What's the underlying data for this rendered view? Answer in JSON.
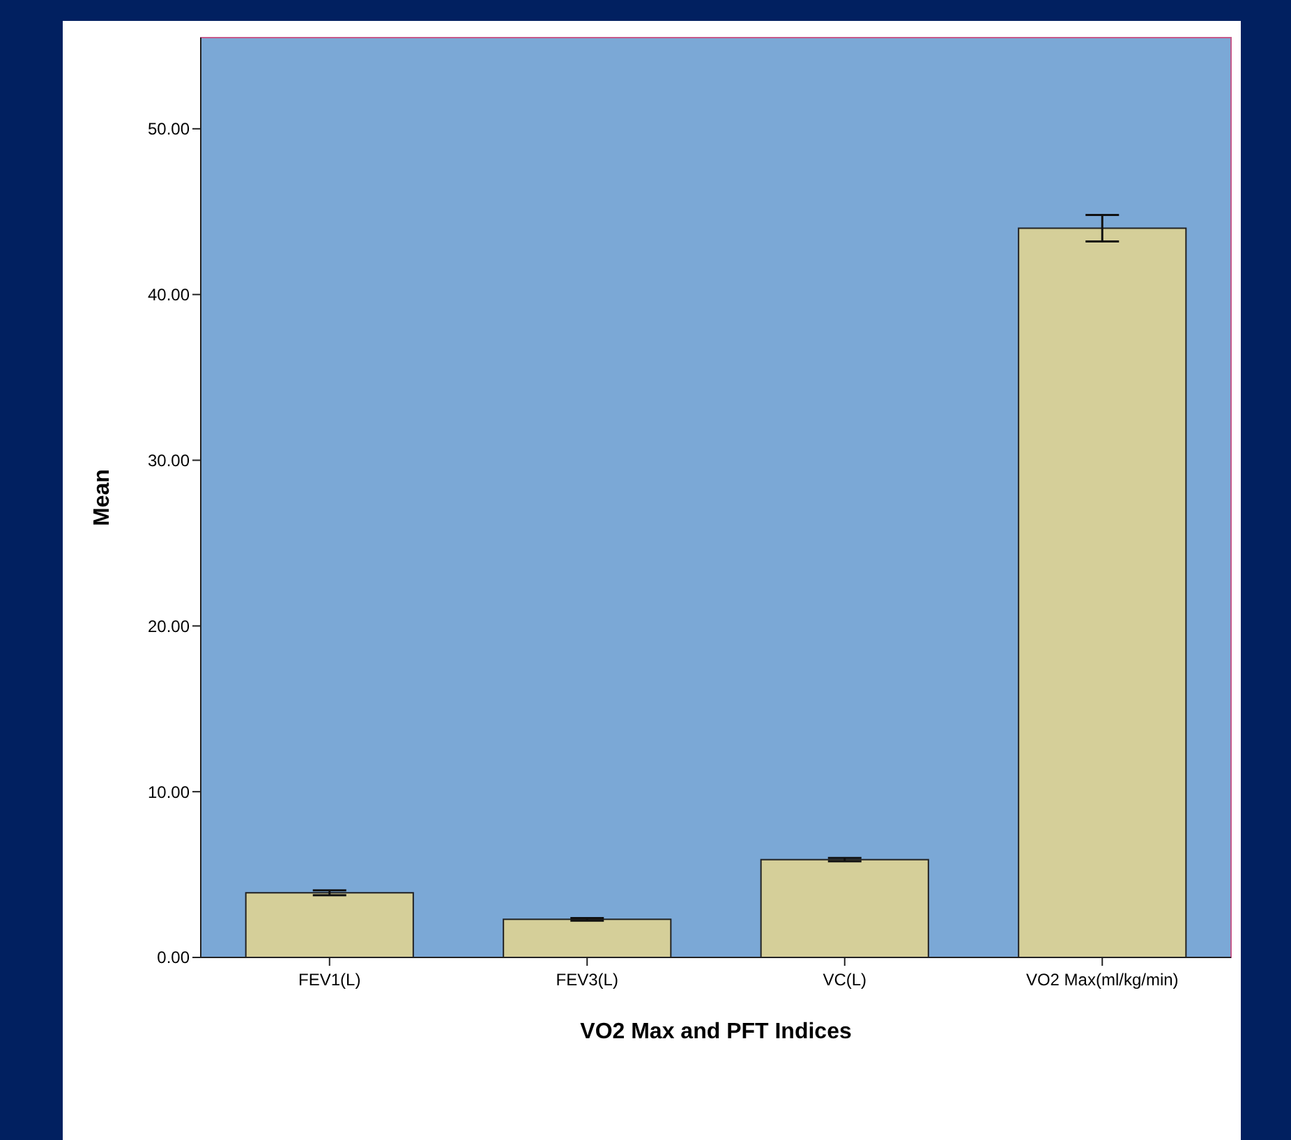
{
  "chart_data": {
    "type": "bar",
    "xlabel": "VO2 Max and PFT Indices",
    "ylabel": "Mean",
    "categories": [
      "FEV1(L)",
      "FEV3(L)",
      "VC(L)",
      "VO2 Max(ml/kg/min)"
    ],
    "values": [
      3.9,
      2.3,
      5.9,
      44.0
    ],
    "errors": [
      0.15,
      0.08,
      0.1,
      0.8
    ],
    "color": "#d5cf99",
    "ylim": [
      0,
      55.5
    ],
    "yticks": [
      {
        "value": 0,
        "label": "0.00"
      },
      {
        "value": 10,
        "label": "10.00"
      },
      {
        "value": 20,
        "label": "20.00"
      },
      {
        "value": 30,
        "label": "30.00"
      },
      {
        "value": 40,
        "label": "40.00"
      },
      {
        "value": 50,
        "label": "50.00"
      }
    ],
    "grid": false
  }
}
